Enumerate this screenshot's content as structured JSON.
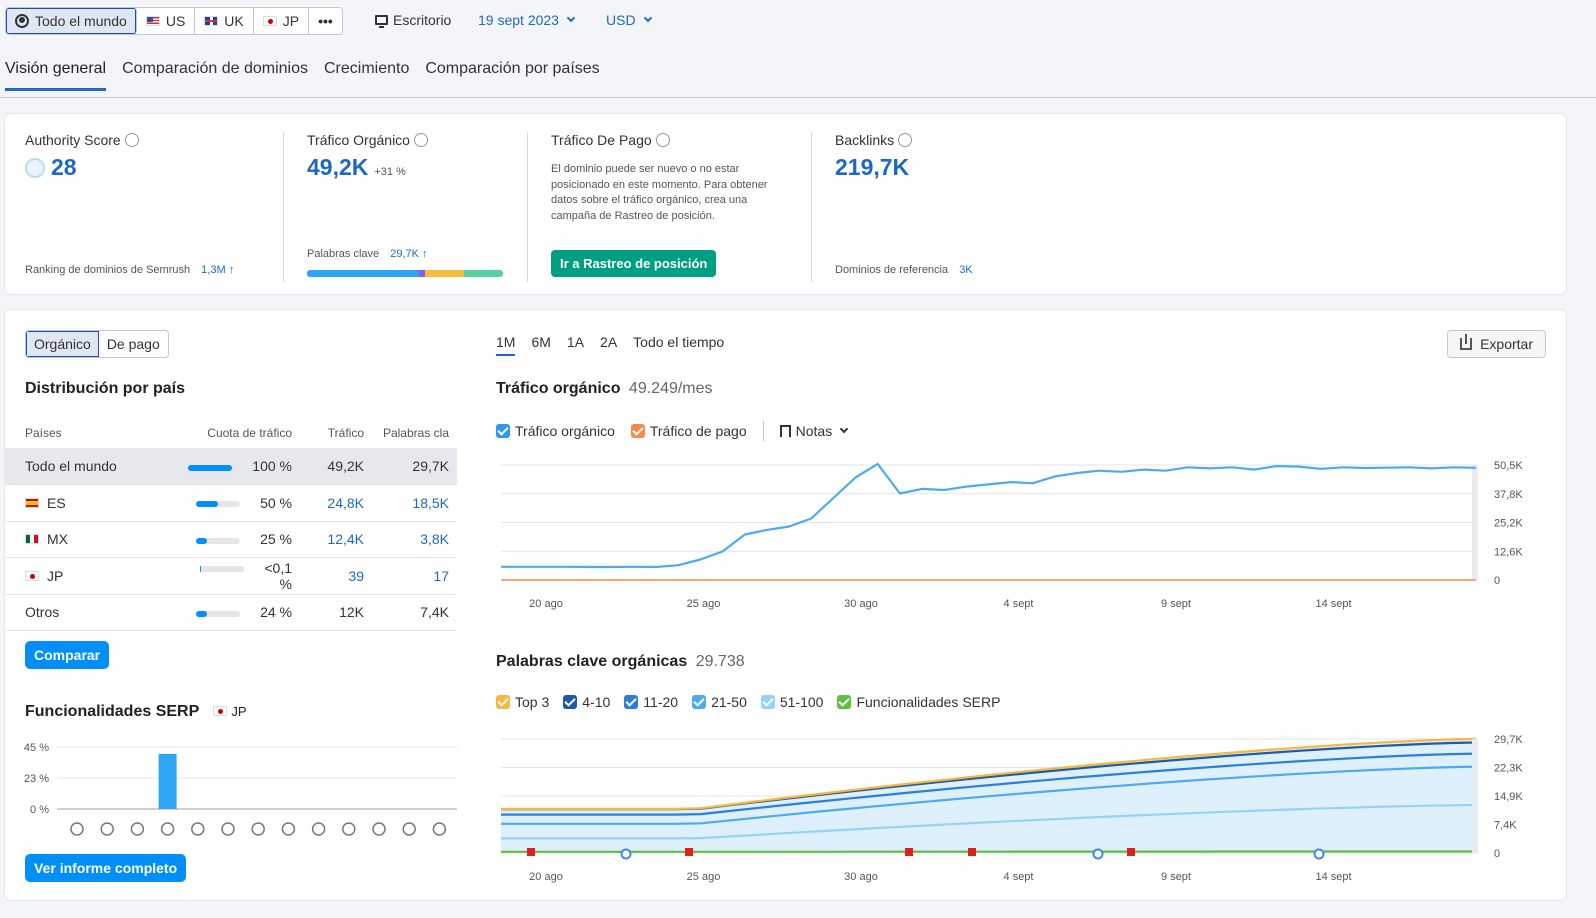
{
  "databases": {
    "worldwide": "Todo el mundo",
    "us": "US",
    "uk": "UK",
    "jp": "JP",
    "more": "•••"
  },
  "device": "Escritorio",
  "date": "19 sept 2023",
  "currency": "USD",
  "tabs": [
    "Visión general",
    "Comparación de dominios",
    "Crecimiento",
    "Comparación por países"
  ],
  "kpis": {
    "authority": {
      "label": "Authority Score",
      "value": "28",
      "footer_label": "Ranking de dominios de Semrush",
      "footer_value": "1,3M"
    },
    "organic": {
      "label": "Tráfico Orgánico",
      "value": "49,2K",
      "delta": "+31 %",
      "footer_label": "Palabras clave",
      "footer_value": "29,7K"
    },
    "paid": {
      "label": "Tráfico De Pago",
      "message": "El dominio puede ser nuevo o no estar posicionado en este momento. Para obtener datos sobre el tráfico orgánico, crea una campaña de Rastreo de posición.",
      "button": "Ir a Rastreo de posición"
    },
    "backlinks": {
      "label": "Backlinks",
      "value": "219,7K",
      "footer_label": "Dominios de referencia",
      "footer_value": "3K"
    }
  },
  "segment": {
    "organic": "Orgánico",
    "paid": "De pago"
  },
  "distribution": {
    "title": "Distribución por país",
    "headers": [
      "Países",
      "Cuota de tráfico",
      "Tráfico",
      "Palabras cla"
    ],
    "rows": [
      {
        "country": "Todo el mundo",
        "flag": "",
        "share": "100 %",
        "share_value": 100,
        "traffic": "49,2K",
        "keywords": "29,7K"
      },
      {
        "country": "ES",
        "flag": "es",
        "share": "50 %",
        "share_value": 50,
        "traffic": "24,8K",
        "keywords": "18,5K"
      },
      {
        "country": "MX",
        "flag": "mx",
        "share": "25 %",
        "share_value": 25,
        "traffic": "12,4K",
        "keywords": "3,8K"
      },
      {
        "country": "JP",
        "flag": "jp",
        "share": "<0,1 %",
        "share_value": 0.1,
        "traffic": "39",
        "keywords": "17"
      },
      {
        "country": "Otros",
        "flag": "",
        "share": "24 %",
        "share_value": 24,
        "traffic": "12K",
        "keywords": "7,4K"
      }
    ],
    "compare_button": "Comparar"
  },
  "serp": {
    "title": "Funcionalidades SERP",
    "db": "JP",
    "y_ticks": [
      "45 %",
      "23 %",
      "0 %"
    ],
    "bar_values": [
      0,
      0,
      0,
      40,
      0,
      0,
      0,
      0,
      0,
      0,
      0,
      0,
      0
    ],
    "icons": [
      "crown-icon",
      "link-icon",
      "star-icon",
      "image-icon",
      "gallery-icon",
      "video-icon",
      "video-box-icon",
      "play-icon",
      "map-pin-icon",
      "graduation-icon",
      "news-icon",
      "briefcase-icon",
      "twitter-icon"
    ],
    "report_button": "Ver informe completo"
  },
  "periods": [
    "1M",
    "6M",
    "1A",
    "2A",
    "Todo el tiempo"
  ],
  "export": "Exportar",
  "traffic_chart": {
    "title": "Tráfico orgánico",
    "subtitle": "49.249/mes",
    "legend": {
      "organic": "Tráfico orgánico",
      "paid": "Tráfico de pago",
      "notes": "Notas"
    }
  },
  "keywords_chart": {
    "title": "Palabras clave orgánicas",
    "subtitle": "29.738",
    "legend": [
      "Top 3",
      "4-10",
      "11-20",
      "21-50",
      "51-100",
      "Funcionalidades SERP"
    ]
  },
  "chart_data": [
    {
      "type": "line",
      "x_ticks": [
        "20 ago",
        "25 ago",
        "30 ago",
        "4 sept",
        "9 sept",
        "14 sept"
      ],
      "y_ticks": [
        "50,5K",
        "37,8K",
        "25,2K",
        "12,6K",
        "0"
      ],
      "ylim": [
        0,
        50500
      ],
      "series": [
        {
          "name": "Tráfico orgánico",
          "color": "#4cabf0",
          "values": [
            5800,
            5800,
            5800,
            5800,
            5700,
            5700,
            5800,
            5700,
            6500,
            9000,
            12500,
            20000,
            22000,
            23500,
            27000,
            36000,
            45000,
            51000,
            38000,
            40000,
            39500,
            41000,
            42000,
            43000,
            42500,
            45500,
            47000,
            48000,
            47500,
            48500,
            48000,
            49500,
            49000,
            49500,
            48500,
            50000,
            49800,
            48800,
            49500,
            49200,
            49300,
            49500,
            49000,
            49500,
            49249
          ]
        },
        {
          "name": "Tráfico de pago",
          "color": "#f7894a",
          "values": [
            0,
            0,
            0,
            0,
            0,
            0,
            0,
            0,
            0,
            0,
            0,
            0,
            0,
            0,
            0,
            0,
            0,
            0,
            0,
            0,
            0,
            0,
            0,
            0,
            0,
            0,
            0,
            0,
            0,
            0,
            0,
            0,
            0,
            0,
            0,
            0,
            0,
            0,
            0,
            0,
            0,
            0,
            0,
            0,
            0
          ]
        }
      ]
    },
    {
      "type": "area",
      "x_ticks": [
        "20 ago",
        "25 ago",
        "30 ago",
        "4 sept",
        "9 sept",
        "14 sept"
      ],
      "y_ticks": [
        "29,7K",
        "22,3K",
        "14,9K",
        "7,4K",
        "0"
      ],
      "ylim": [
        0,
        29700
      ],
      "series": [
        {
          "name": "Top 3",
          "color": "#f7b740",
          "start": 11500,
          "end": 29738
        },
        {
          "name": "4-10",
          "color": "#1e5aaa",
          "start": 11400,
          "end": 28800
        },
        {
          "name": "11-20",
          "color": "#2b7fd8",
          "start": 10000,
          "end": 25900
        },
        {
          "name": "21-50",
          "color": "#4cabf0",
          "start": 7600,
          "end": 22500
        },
        {
          "name": "51-100",
          "color": "#95d2f8",
          "start": 3800,
          "end": 12500
        },
        {
          "name": "Funcionalidades SERP",
          "color": "#5fbf3f",
          "start": 300,
          "end": 400
        }
      ]
    }
  ]
}
